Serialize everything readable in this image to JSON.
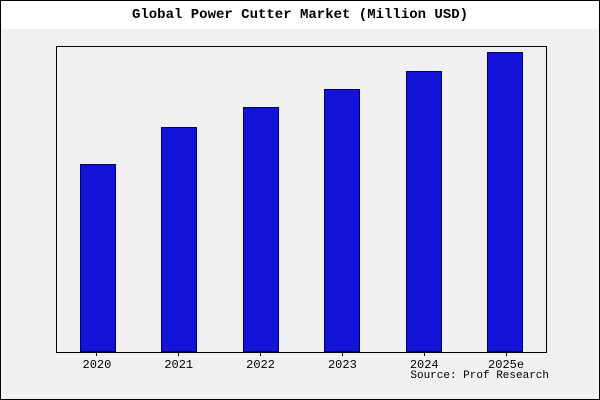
{
  "title": "Global Power Cutter Market (Million USD)",
  "source": "Source: Prof Research",
  "colors": {
    "bar_fill": "#1414d9",
    "bar_edge": "#000066",
    "panel_background": "#f0f0f0",
    "figure_background": "#ffffff",
    "border": "#000000"
  },
  "chart_data": {
    "type": "bar",
    "title": "Global Power Cutter Market (Million USD)",
    "categories": [
      "2020",
      "2021",
      "2022",
      "2023",
      "2024",
      "2025e"
    ],
    "values": [
      188,
      225,
      245,
      263,
      281,
      300
    ],
    "xlabel": "",
    "ylabel": "",
    "ylim": [
      0,
      305
    ],
    "y_axis_labels_visible": false,
    "grid": false,
    "legend": false,
    "bar_color": "#1414d9",
    "annotation": "Source: Prof Research"
  }
}
